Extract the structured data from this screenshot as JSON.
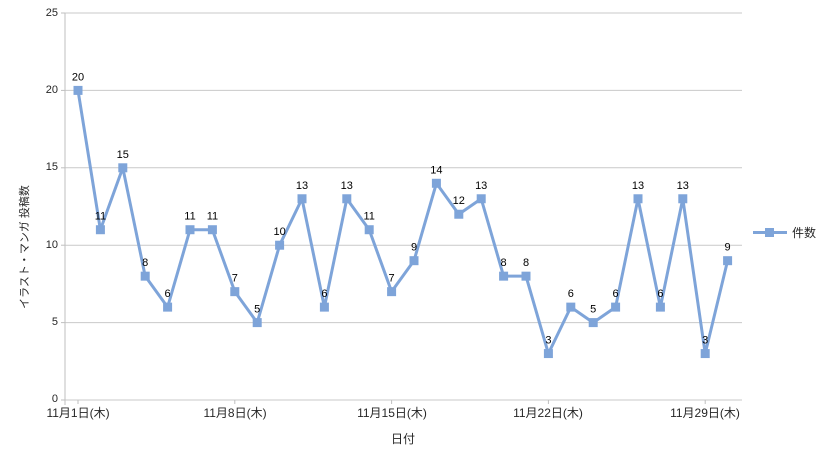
{
  "chart_data": {
    "type": "line",
    "title": "",
    "y_axis": {
      "title": "イラスト・マンガ 投稿数",
      "min": 0,
      "max": 25,
      "ticks": [
        0,
        5,
        10,
        15,
        20,
        25
      ]
    },
    "x_axis": {
      "title": "日付",
      "tick_labels": [
        "11月1日(木)",
        "11月8日(木)",
        "11月15日(木)",
        "11月22日(木)",
        "11月29日(木)"
      ],
      "tick_indices": [
        0,
        7,
        14,
        21,
        28
      ]
    },
    "series": [
      {
        "name": "件数",
        "color": "#7EA4D9",
        "values": [
          20,
          11,
          15,
          8,
          6,
          11,
          11,
          7,
          5,
          10,
          13,
          6,
          13,
          11,
          7,
          9,
          14,
          12,
          13,
          8,
          8,
          3,
          6,
          5,
          6,
          13,
          6,
          13,
          3,
          9
        ]
      }
    ],
    "data_labels_visible": true,
    "legend_position": "right",
    "gridline_color": "#C9C9C9",
    "axis_color": "#BFBFBF",
    "label_color": "#000000"
  }
}
